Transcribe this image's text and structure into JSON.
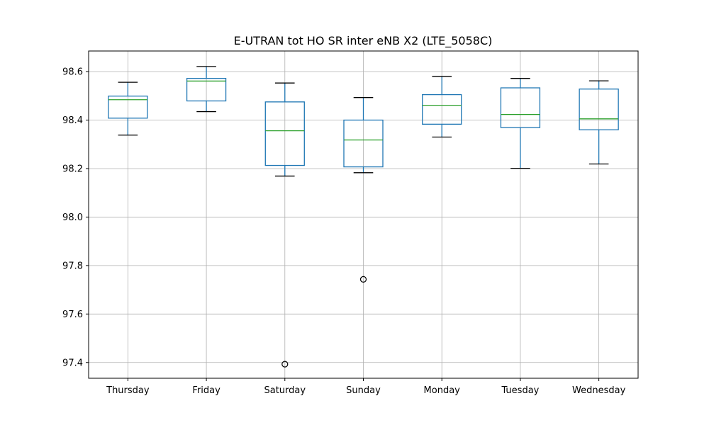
{
  "chart_data": {
    "type": "box",
    "title": "E-UTRAN tot HO SR inter eNB X2 (LTE_5058C)",
    "xlabel": "",
    "ylabel": "",
    "ylim": [
      97.335,
      98.685
    ],
    "yticks": [
      97.4,
      97.6,
      97.8,
      98.0,
      98.2,
      98.4,
      98.6
    ],
    "ytick_labels": [
      "97.4",
      "97.6",
      "97.8",
      "98.0",
      "98.2",
      "98.4",
      "98.6"
    ],
    "grid": true,
    "categories": [
      "Thursday",
      "Friday",
      "Saturday",
      "Sunday",
      "Monday",
      "Tuesday",
      "Wednesday"
    ],
    "boxes": [
      {
        "category": "Thursday",
        "whisker_low": 98.338,
        "q1": 98.408,
        "median": 98.484,
        "q3": 98.499,
        "whisker_high": 98.556,
        "outliers": []
      },
      {
        "category": "Friday",
        "whisker_low": 98.435,
        "q1": 98.479,
        "median": 98.561,
        "q3": 98.572,
        "whisker_high": 98.621,
        "outliers": []
      },
      {
        "category": "Saturday",
        "whisker_low": 98.169,
        "q1": 98.213,
        "median": 98.356,
        "q3": 98.475,
        "whisker_high": 98.553,
        "outliers": [
          97.393
        ]
      },
      {
        "category": "Sunday",
        "whisker_low": 98.183,
        "q1": 98.207,
        "median": 98.318,
        "q3": 98.4,
        "whisker_high": 98.493,
        "outliers": [
          97.743
        ]
      },
      {
        "category": "Monday",
        "whisker_low": 98.33,
        "q1": 98.383,
        "median": 98.461,
        "q3": 98.505,
        "whisker_high": 98.58,
        "outliers": []
      },
      {
        "category": "Tuesday",
        "whisker_low": 98.201,
        "q1": 98.369,
        "median": 98.423,
        "q3": 98.533,
        "whisker_high": 98.572,
        "outliers": []
      },
      {
        "category": "Wednesday",
        "whisker_low": 98.219,
        "q1": 98.36,
        "median": 98.405,
        "q3": 98.528,
        "whisker_high": 98.562,
        "outliers": []
      }
    ],
    "colors": {
      "box": "#1f77b4",
      "median": "#2ca02c",
      "whisker": "#1f77b4",
      "cap": "#000000",
      "outlier": "#000000",
      "grid": "#b0b0b0",
      "axes": "#000000"
    }
  }
}
